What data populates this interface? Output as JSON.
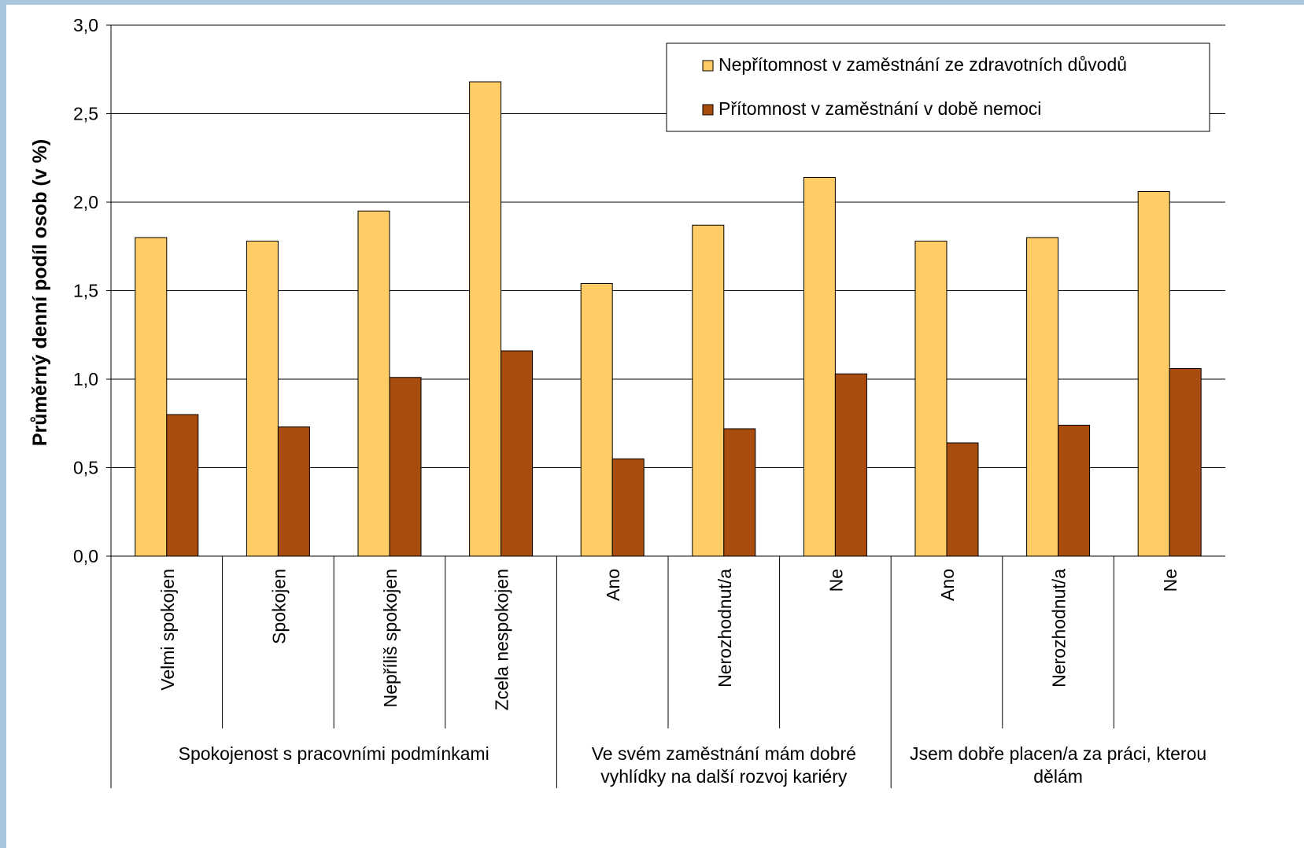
{
  "chart_data": {
    "type": "bar",
    "ylabel": "Průměrný denní podíl osob (v %)",
    "xlabel": "",
    "ylim": [
      0,
      3.0
    ],
    "yticks": [
      0.0,
      0.5,
      1.0,
      1.5,
      2.0,
      2.5,
      3.0
    ],
    "ytick_labels": [
      "0,0",
      "0,5",
      "1,0",
      "1,5",
      "2,0",
      "2,5",
      "3,0"
    ],
    "grid": true,
    "legend_position": "top-right",
    "categories": [
      "Velmi spokojen",
      "Spokojen",
      "Nepříliš spokojen",
      "Zcela nespokojen",
      "Ano",
      "Nerozhodnut/a",
      "Ne",
      "Ano",
      "Nerozhodnut/a",
      "Ne"
    ],
    "groups": [
      {
        "label": "Spokojenost s pracovními podmínkami",
        "count": 4
      },
      {
        "label": "Ve svém zaměstnání mám dobré vyhlídky na další rozvoj kariéry",
        "label_lines": [
          "Ve svém zaměstnání mám dobré",
          "vyhlídky na další rozvoj kariéry"
        ],
        "count": 3
      },
      {
        "label": "Jsem dobře placen/a za práci, kterou dělám",
        "label_lines": [
          "Jsem dobře placen/a za práci, kterou",
          "dělám"
        ],
        "count": 3
      }
    ],
    "series": [
      {
        "name": "Nepřítomnost v zaměstnání ze zdravotních důvodů",
        "color": "#ffcc66",
        "values": [
          1.8,
          1.78,
          1.95,
          2.68,
          1.54,
          1.87,
          2.14,
          1.78,
          1.8,
          2.06
        ]
      },
      {
        "name": "Přítomnost v zaměstnání v době nemoci",
        "color": "#a84c10",
        "values": [
          0.8,
          0.73,
          1.01,
          1.16,
          0.55,
          0.72,
          1.03,
          0.64,
          0.74,
          1.06
        ]
      }
    ]
  }
}
